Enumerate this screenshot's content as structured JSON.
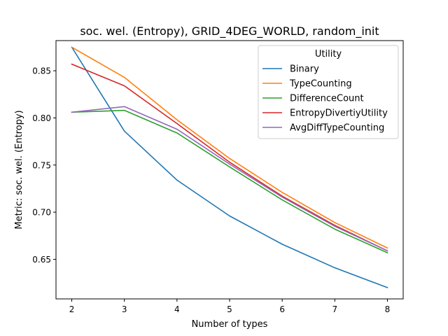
{
  "chart_data": {
    "type": "line",
    "title": "soc. wel. (Entropy), GRID_4DEG_WORLD, random_init",
    "xlabel": "Number of types",
    "ylabel": "Metric: soc. wel. (Entropy)",
    "x": [
      2,
      3,
      4,
      5,
      6,
      7,
      8
    ],
    "xlim": [
      1.7,
      8.3
    ],
    "ylim": [
      0.608,
      0.882
    ],
    "xticks": [
      2,
      3,
      4,
      5,
      6,
      7,
      8
    ],
    "yticks": [
      0.65,
      0.7,
      0.75,
      0.8,
      0.85
    ],
    "ytick_labels": [
      "0.65",
      "0.70",
      "0.75",
      "0.80",
      "0.85"
    ],
    "grid": false,
    "legend": {
      "title": "Utility",
      "placement": "top-right"
    },
    "series": [
      {
        "name": "Binary",
        "color": "#1f77b4",
        "values": [
          0.875,
          0.786,
          0.734,
          0.696,
          0.666,
          0.641,
          0.62
        ]
      },
      {
        "name": "TypeCounting",
        "color": "#ff7f0e",
        "values": [
          0.875,
          0.843,
          0.798,
          0.757,
          0.721,
          0.689,
          0.662
        ]
      },
      {
        "name": "DifferenceCount",
        "color": "#2ca02c",
        "values": [
          0.806,
          0.808,
          0.784,
          0.748,
          0.713,
          0.682,
          0.657
        ]
      },
      {
        "name": "EntropyDivertiyUtility",
        "color": "#d62728",
        "values": [
          0.857,
          0.834,
          0.794,
          0.753,
          0.717,
          0.686,
          0.659
        ]
      },
      {
        "name": "AvgDiffTypeCounting",
        "color": "#9467bd",
        "values": [
          0.806,
          0.812,
          0.788,
          0.751,
          0.716,
          0.685,
          0.659
        ]
      }
    ]
  }
}
